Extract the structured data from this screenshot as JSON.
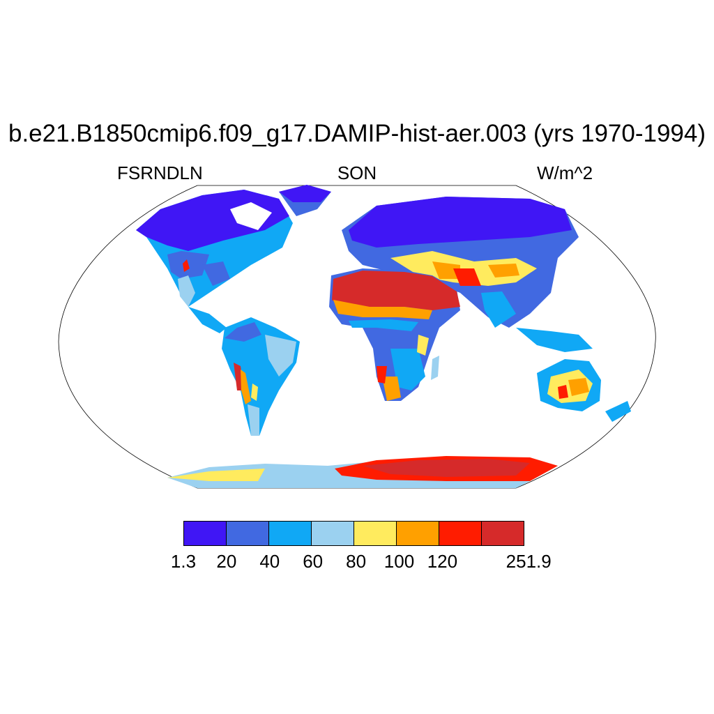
{
  "title": "b.e21.B1850cmip6.f09_g17.DAMIP-hist-aer.003 (yrs 1970-1994)",
  "subtitle_left": "FSRNDLN",
  "subtitle_center": "SON",
  "subtitle_right": "W/m^2",
  "colorbar": {
    "colors": [
      "#4016f5",
      "#4169e1",
      "#10a8f5",
      "#9bd1f0",
      "#ffeb5e",
      "#ffa000",
      "#ff1c00",
      "#d62a2a"
    ],
    "tick_labels": [
      "1.3",
      "20",
      "40",
      "60",
      "80",
      "100",
      "120",
      "",
      "251.9"
    ]
  },
  "colors": {
    "ocean": "#ffffff",
    "outline": "#000000"
  }
}
